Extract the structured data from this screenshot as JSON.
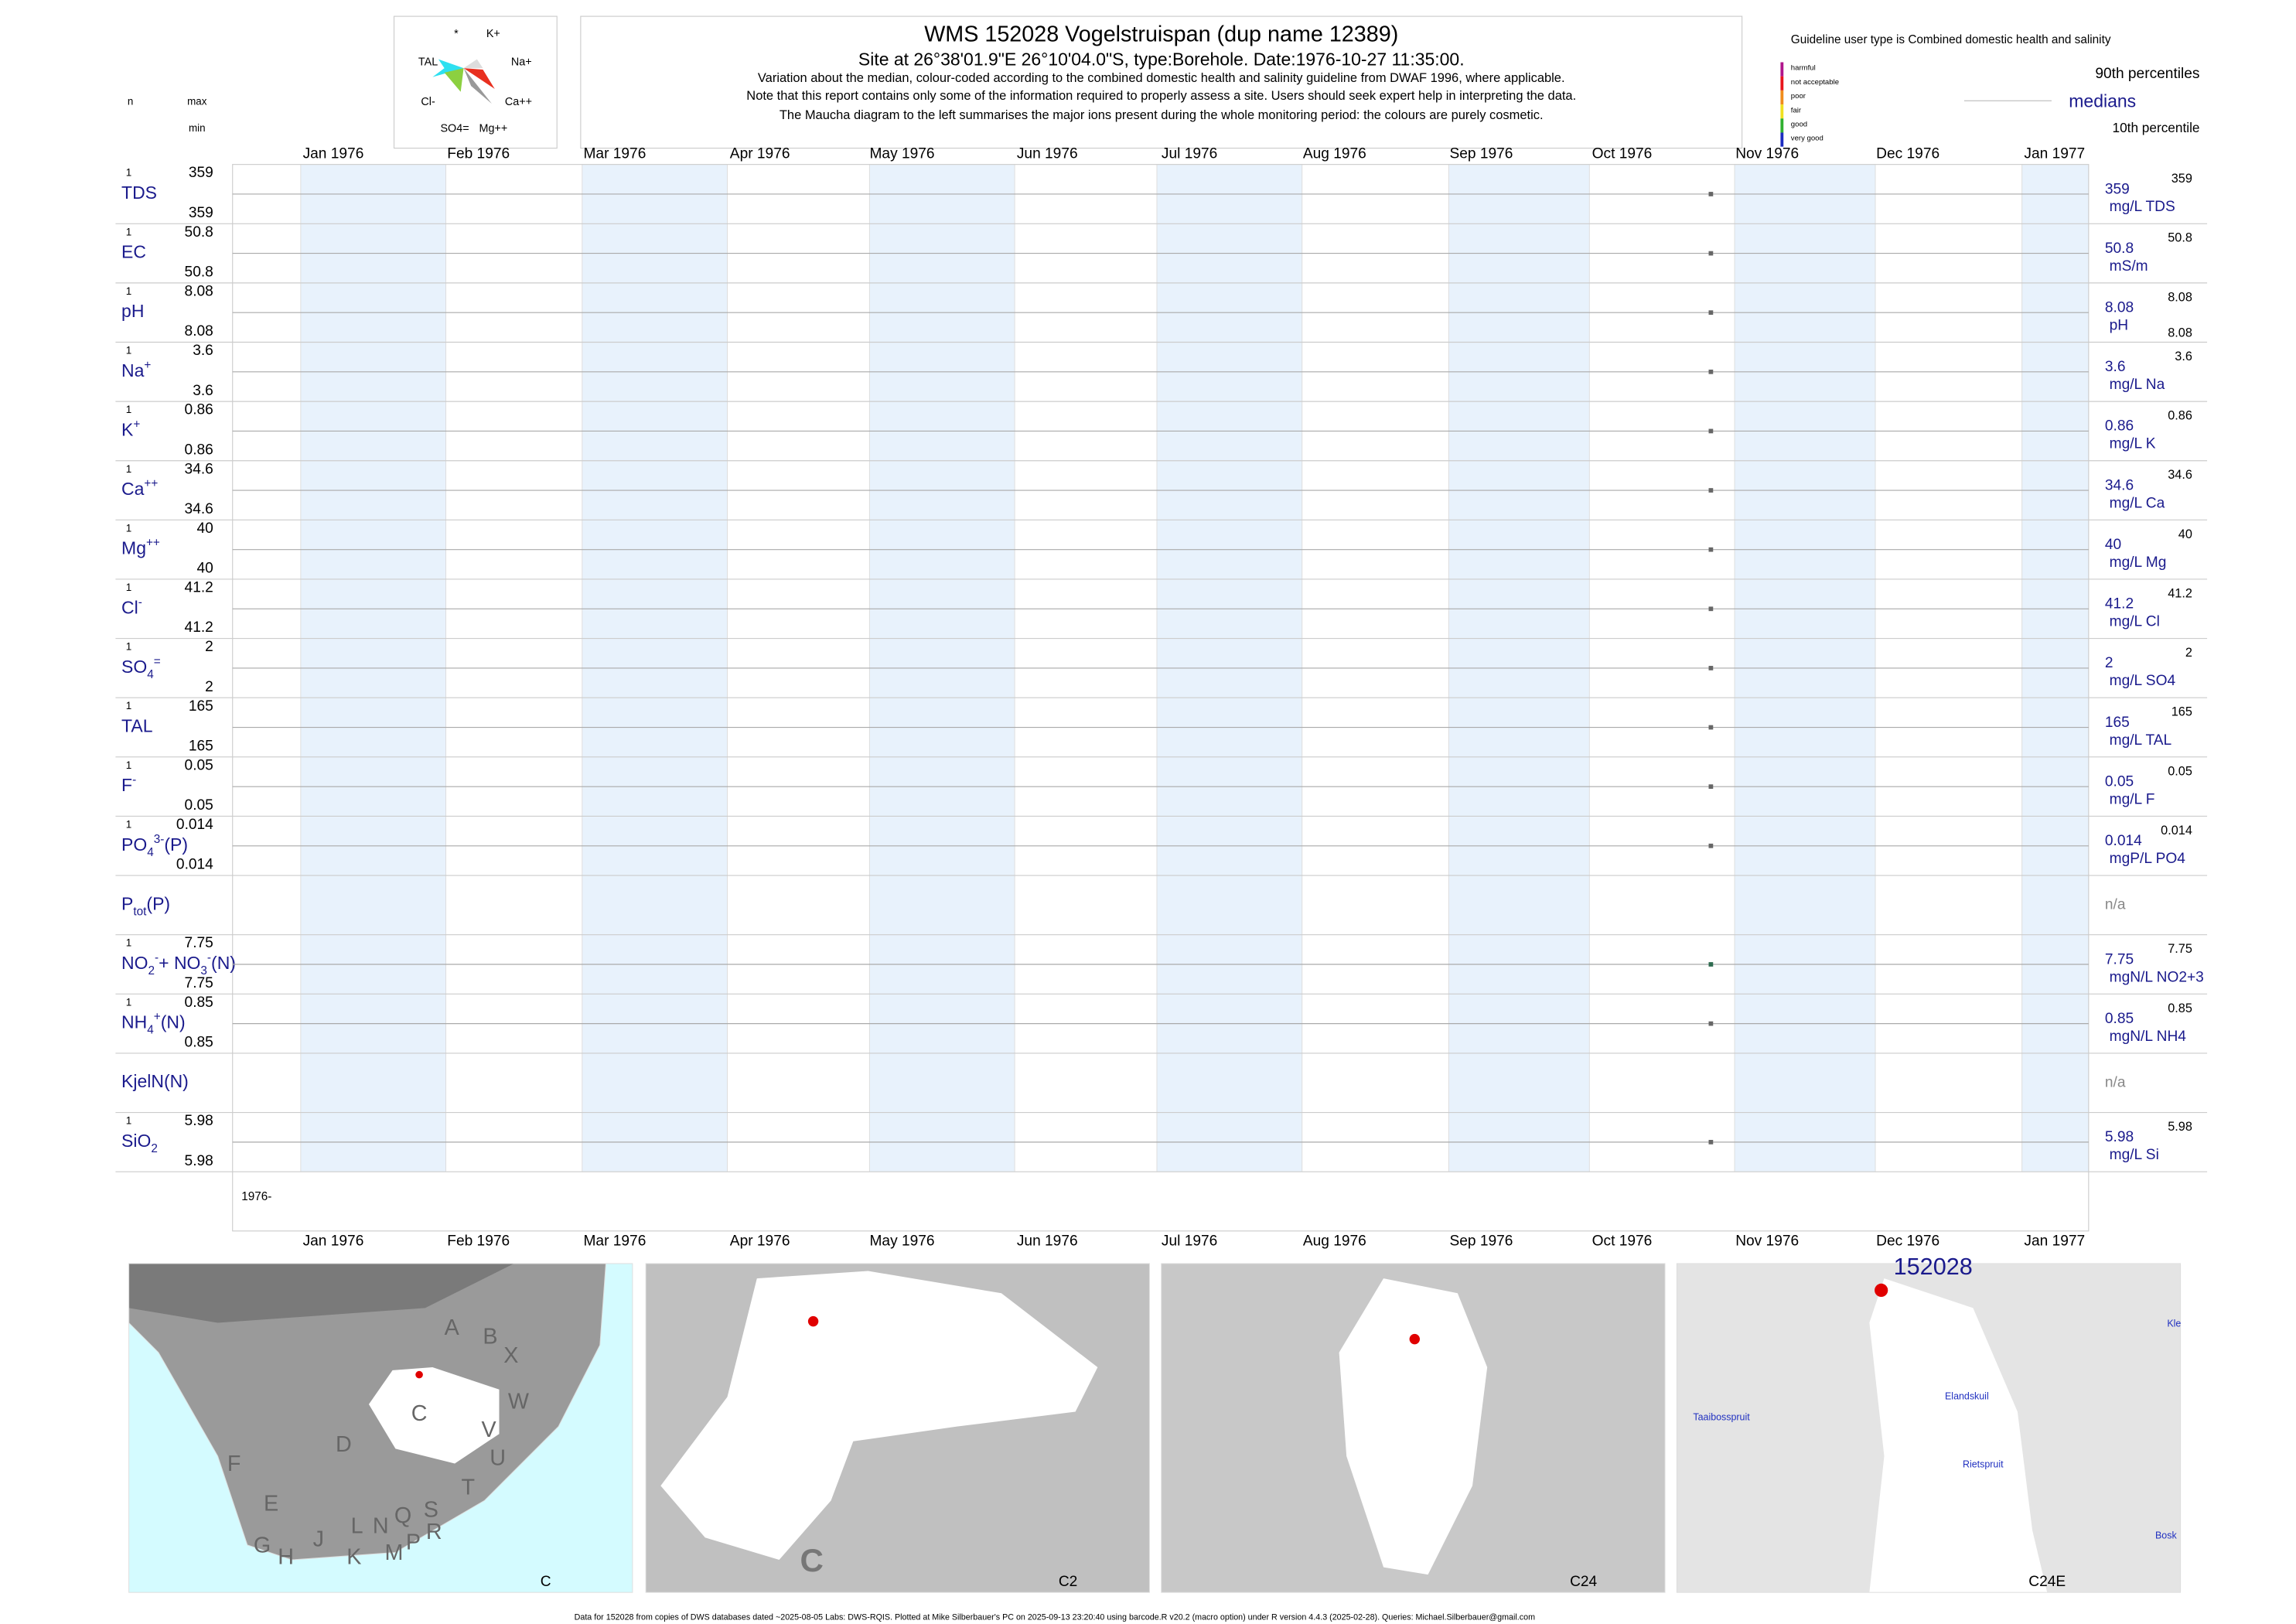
{
  "header": {
    "title": "WMS 152028  Vogelstruispan (dup name 12389)",
    "site": "Site at 26°38'01.9\"E 26°10'04.0\"S, type:Borehole. Date:1976-10-27 11:35:00.",
    "notes": [
      "Variation about the median,  colour-coded according to the combined domestic health and salinity guideline from DWAF 1996, where applicable.",
      "Note that this report contains only some of the information required to properly assess a site. Users should seek expert help in interpreting the data.",
      "The Maucha diagram to the left summarises the major ions present during the whole monitoring period: the colours are purely cosmetic."
    ]
  },
  "maucha": {
    "labels": [
      "*",
      "K+",
      "TAL",
      "Na+",
      "Cl-",
      "Ca++",
      "SO4=",
      "Mg++"
    ]
  },
  "legend": {
    "guideline": "Guideline user type is Combined domestic health and salinity",
    "classes": [
      {
        "name": "harmful",
        "color": "#b0158c"
      },
      {
        "name": "not acceptable",
        "color": "#e8141c"
      },
      {
        "name": "poor",
        "color": "#f08c1c"
      },
      {
        "name": "fair",
        "color": "#f0e020"
      },
      {
        "name": "good",
        "color": "#30b030"
      },
      {
        "name": "very good",
        "color": "#1c2cc0"
      }
    ],
    "p90": "90th percentiles",
    "median": "medians",
    "p10": "10th percentile"
  },
  "columns": {
    "n": "n",
    "max": "max",
    "min": "min"
  },
  "months": [
    "Jan 1976",
    "Feb 1976",
    "Mar 1976",
    "Apr 1976",
    "May 1976",
    "Jun 1976",
    "Jul 1976",
    "Aug 1976",
    "Sep 1976",
    "Oct 1976",
    "Nov 1976",
    "Dec 1976",
    "Jan 1977"
  ],
  "rows": [
    {
      "label": [
        {
          "text": "TDS"
        }
      ],
      "n": 1,
      "max": 359,
      "min": 359,
      "median": 359,
      "unit": "mg/L TDS",
      "p90": 359,
      "point_color": "#666"
    },
    {
      "label": [
        {
          "text": "EC"
        }
      ],
      "n": 1,
      "max": 50.8,
      "min": 50.8,
      "median": 50.8,
      "unit": "mS/m",
      "p90": 50.8,
      "point_color": "#666"
    },
    {
      "label": [
        {
          "text": "pH"
        }
      ],
      "n": 1,
      "max": 8.08,
      "min": 8.08,
      "median": 8.08,
      "unit": "pH",
      "p90": 8.08,
      "p10": 8.08,
      "point_color": "#666"
    },
    {
      "label": [
        {
          "text": "Na"
        },
        {
          "sup": "+"
        }
      ],
      "n": 1,
      "max": 3.6,
      "min": 3.6,
      "median": 3.6,
      "unit": "mg/L Na",
      "p90": 3.6,
      "point_color": "#666"
    },
    {
      "label": [
        {
          "text": "K"
        },
        {
          "sup": "+"
        }
      ],
      "n": 1,
      "max": 0.86,
      "min": 0.86,
      "median": 0.86,
      "unit": "mg/L K",
      "p90": 0.86,
      "point_color": "#666"
    },
    {
      "label": [
        {
          "text": "Ca"
        },
        {
          "sup": "++"
        }
      ],
      "n": 1,
      "max": 34.6,
      "min": 34.6,
      "median": 34.6,
      "unit": "mg/L Ca",
      "p90": 34.6,
      "point_color": "#666"
    },
    {
      "label": [
        {
          "text": "Mg"
        },
        {
          "sup": "++"
        }
      ],
      "n": 1,
      "max": 40,
      "min": 40,
      "median": 40,
      "unit": "mg/L Mg",
      "p90": 40,
      "point_color": "#666"
    },
    {
      "label": [
        {
          "text": "Cl"
        },
        {
          "sup": "-"
        }
      ],
      "n": 1,
      "max": 41.2,
      "min": 41.2,
      "median": 41.2,
      "unit": "mg/L Cl",
      "p90": 41.2,
      "point_color": "#666"
    },
    {
      "label": [
        {
          "text": "SO"
        },
        {
          "sub": "4"
        },
        {
          "sup": "="
        }
      ],
      "n": 1,
      "max": 2,
      "min": 2,
      "median": 2,
      "unit": "mg/L SO4",
      "p90": 2,
      "point_color": "#666"
    },
    {
      "label": [
        {
          "text": "TAL"
        }
      ],
      "n": 1,
      "max": 165,
      "min": 165,
      "median": 165,
      "unit": "mg/L TAL",
      "p90": 165,
      "point_color": "#666"
    },
    {
      "label": [
        {
          "text": "F"
        },
        {
          "sup": "-"
        }
      ],
      "n": 1,
      "max": 0.05,
      "min": 0.05,
      "median": 0.05,
      "unit": "mg/L F",
      "p90": 0.05,
      "point_color": "#666"
    },
    {
      "label": [
        {
          "text": "PO"
        },
        {
          "sub": "4"
        },
        {
          "sup": "3-"
        },
        {
          "text": "(P)"
        }
      ],
      "n": 1,
      "max": 0.014,
      "min": 0.014,
      "median": 0.014,
      "unit": "mgP/L PO4",
      "p90": 0.014,
      "point_color": "#666"
    },
    {
      "label": [
        {
          "text": "P"
        },
        {
          "sub": "tot"
        },
        {
          "text": "(P)"
        }
      ],
      "na": "n/a"
    },
    {
      "label": [
        {
          "text": "NO"
        },
        {
          "sub": "2"
        },
        {
          "sup": "-"
        },
        {
          "text": "+ NO"
        },
        {
          "sub": "3"
        },
        {
          "sup": "-"
        },
        {
          "text": "(N)"
        }
      ],
      "n": 1,
      "max": 7.75,
      "min": 7.75,
      "median": 7.75,
      "unit": "mgN/L NO2+3",
      "p90": 7.75,
      "point_color": "#2e6b4f"
    },
    {
      "label": [
        {
          "text": "NH"
        },
        {
          "sub": "4"
        },
        {
          "sup": "+"
        },
        {
          "text": "(N)"
        }
      ],
      "n": 1,
      "max": 0.85,
      "min": 0.85,
      "median": 0.85,
      "unit": "mgN/L NH4",
      "p90": 0.85,
      "point_color": "#666"
    },
    {
      "label": [
        {
          "text": "KjelN(N)"
        }
      ],
      "na": "n/a"
    },
    {
      "label": [
        {
          "text": "SiO"
        },
        {
          "sub": "2"
        }
      ],
      "n": 1,
      "max": 5.98,
      "min": 5.98,
      "median": 5.98,
      "unit": "mg/L Si",
      "p90": 5.98,
      "point_color": "#666"
    }
  ],
  "year_label": "1976-",
  "maps": [
    {
      "label": "C",
      "texts": [
        "A",
        "B",
        "X",
        "W",
        "V",
        "U",
        "T",
        "S",
        "R",
        "P",
        "M",
        "K",
        "H",
        "G",
        "J",
        "L",
        "N",
        "Q",
        "E",
        "F",
        "D",
        "C"
      ]
    },
    {
      "label": "C2",
      "texts": [
        "C"
      ]
    },
    {
      "label": "C24",
      "texts": []
    },
    {
      "label": "C24E",
      "texts": [
        "152028",
        "Taaibosspruit",
        "Elandskuil",
        "Rietspruit",
        "Kle",
        "Bosk"
      ]
    }
  ],
  "footer": "Data for 152028 from copies of DWS databases dated ~2025-08-05 Labs: DWS-RQIS. Plotted at Mike Silberbauer's PC on 2025-09-13 23:20:40 using barcode.R v20.2 (macro option) under R version 4.4.3 (2025-02-28). Queries: Michael.Silberbauer@gmail.com"
}
